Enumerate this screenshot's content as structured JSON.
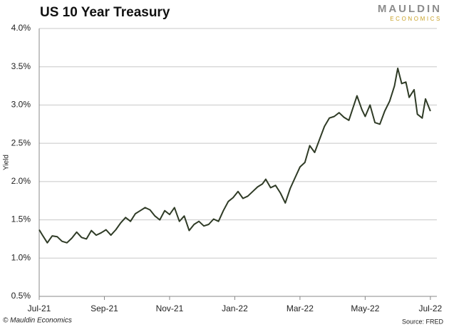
{
  "chart_data": {
    "type": "line",
    "title": "US 10 Year Treasury",
    "brand": [
      "MAULDIN",
      "ECONOMICS"
    ],
    "y_label": "Yield",
    "credit": "© Mauldin Economics",
    "source": "Source: FRED",
    "grid": true,
    "xlim": [
      0,
      12.2
    ],
    "xticks": [
      {
        "value": 0,
        "label": "Jul-21"
      },
      {
        "value": 2,
        "label": "Sep-21"
      },
      {
        "value": 4,
        "label": "Nov-21"
      },
      {
        "value": 6,
        "label": "Jan-22"
      },
      {
        "value": 8,
        "label": "Mar-22"
      },
      {
        "value": 10,
        "label": "May-22"
      },
      {
        "value": 12,
        "label": "Jul-22"
      }
    ],
    "ylim": [
      0.5,
      4.0
    ],
    "yticks": [
      {
        "value": 0.5,
        "label": "0.5%"
      },
      {
        "value": 1.0,
        "label": "1.0%"
      },
      {
        "value": 1.5,
        "label": "1.5%"
      },
      {
        "value": 2.0,
        "label": "2.0%"
      },
      {
        "value": 2.5,
        "label": "2.5%"
      },
      {
        "value": 3.0,
        "label": "3.0%"
      },
      {
        "value": 3.5,
        "label": "3.5%"
      },
      {
        "value": 4.0,
        "label": "4.0%"
      }
    ],
    "series": [
      {
        "name": "Yield",
        "color": "#2f3b26",
        "x": [
          0,
          0.1,
          0.25,
          0.4,
          0.55,
          0.7,
          0.85,
          1.0,
          1.15,
          1.3,
          1.45,
          1.6,
          1.75,
          1.9,
          2.05,
          2.2,
          2.35,
          2.5,
          2.65,
          2.8,
          2.95,
          3.1,
          3.25,
          3.4,
          3.55,
          3.7,
          3.85,
          4.0,
          4.15,
          4.3,
          4.45,
          4.6,
          4.75,
          4.9,
          5.05,
          5.2,
          5.35,
          5.5,
          5.65,
          5.8,
          5.95,
          6.1,
          6.25,
          6.4,
          6.55,
          6.7,
          6.85,
          6.95,
          7.1,
          7.25,
          7.4,
          7.55,
          7.7,
          7.85,
          8.0,
          8.15,
          8.3,
          8.45,
          8.6,
          8.75,
          8.9,
          9.05,
          9.2,
          9.35,
          9.5,
          9.6,
          9.75,
          9.9,
          10.0,
          10.15,
          10.3,
          10.45,
          10.6,
          10.75,
          10.9,
          11.0,
          11.12,
          11.25,
          11.35,
          11.5,
          11.6,
          11.75,
          11.85,
          12.0
        ],
        "values": [
          1.37,
          1.3,
          1.2,
          1.29,
          1.28,
          1.22,
          1.2,
          1.26,
          1.34,
          1.27,
          1.25,
          1.36,
          1.3,
          1.33,
          1.37,
          1.3,
          1.37,
          1.46,
          1.53,
          1.48,
          1.58,
          1.62,
          1.66,
          1.63,
          1.55,
          1.5,
          1.62,
          1.57,
          1.66,
          1.48,
          1.55,
          1.36,
          1.44,
          1.48,
          1.42,
          1.44,
          1.51,
          1.48,
          1.62,
          1.74,
          1.79,
          1.87,
          1.78,
          1.81,
          1.87,
          1.93,
          1.97,
          2.03,
          1.92,
          1.95,
          1.85,
          1.72,
          1.91,
          2.05,
          2.19,
          2.25,
          2.47,
          2.38,
          2.55,
          2.72,
          2.83,
          2.85,
          2.9,
          2.84,
          2.8,
          2.93,
          3.12,
          2.94,
          2.85,
          3.0,
          2.77,
          2.75,
          2.92,
          3.05,
          3.25,
          3.48,
          3.28,
          3.3,
          3.1,
          3.2,
          2.88,
          2.83,
          3.08,
          2.92
        ]
      }
    ]
  }
}
